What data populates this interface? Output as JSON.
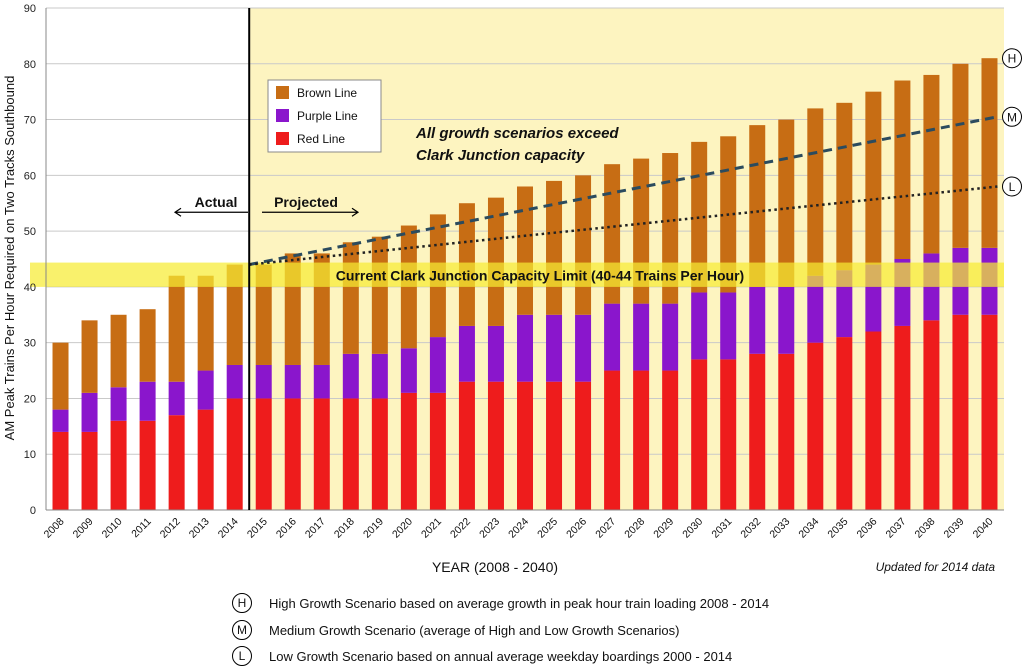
{
  "chart_data": {
    "type": "bar",
    "stacked": true,
    "title": "",
    "ylabel": "AM Peak Trains Per Hour Required on Two Tracks Southbound",
    "xlabel": "YEAR (2008 - 2040)",
    "ylim": [
      0,
      90
    ],
    "yticks": [
      0,
      10,
      20,
      30,
      40,
      50,
      60,
      70,
      80,
      90
    ],
    "categories": [
      "2008",
      "2009",
      "2010",
      "2011",
      "2012",
      "2013",
      "2014",
      "2015",
      "2016",
      "2017",
      "2018",
      "2019",
      "2020",
      "2021",
      "2022",
      "2023",
      "2024",
      "2025",
      "2026",
      "2027",
      "2028",
      "2029",
      "2030",
      "2031",
      "2032",
      "2033",
      "2034",
      "2035",
      "2036",
      "2037",
      "2038",
      "2039",
      "2040"
    ],
    "series": [
      {
        "name": "Red Line",
        "color": "#ee1c1c",
        "values": [
          14,
          14,
          16,
          16,
          17,
          18,
          20,
          20,
          20,
          20,
          20,
          20,
          21,
          21,
          23,
          23,
          23,
          23,
          23,
          25,
          25,
          25,
          27,
          27,
          28,
          28,
          30,
          31,
          32,
          33,
          34,
          35,
          35
        ]
      },
      {
        "name": "Purple Line",
        "color": "#8a16cc",
        "values": [
          4,
          7,
          6,
          7,
          6,
          7,
          6,
          6,
          6,
          6,
          8,
          8,
          8,
          10,
          10,
          10,
          12,
          12,
          12,
          12,
          12,
          12,
          12,
          12,
          12,
          12,
          12,
          12,
          12,
          12,
          12,
          12,
          12
        ]
      },
      {
        "name": "Brown Line",
        "color": "#c76d14",
        "values": [
          12,
          13,
          13,
          13,
          19,
          17,
          18,
          18,
          20,
          20,
          20,
          21,
          22,
          22,
          22,
          23,
          23,
          24,
          25,
          25,
          26,
          27,
          27,
          28,
          29,
          30,
          30,
          30,
          31,
          32,
          32,
          33,
          34
        ]
      }
    ],
    "legend": [
      "Brown Line",
      "Purple Line",
      "Red Line"
    ],
    "legend_position": "top-left",
    "actual_label": "Actual",
    "projected_label": "Projected",
    "split_after": "2014",
    "growth_note_line1": "All growth scenarios exceed",
    "growth_note_line2": "Clark Junction capacity",
    "capacity_label": "Current Clark Junction Capacity Limit (40-44 Trains Per Hour)",
    "capacity_range": [
      40,
      44
    ],
    "updated_note": "Updated for 2014 data",
    "scenario_lines": [
      {
        "marker": "H",
        "from_year": "2015",
        "from_value": 44,
        "to_year": "2040",
        "to_value": 81
      },
      {
        "marker": "M",
        "from_year": "2015",
        "from_value": 44,
        "to_year": "2040",
        "to_value": 70.5
      },
      {
        "marker": "L",
        "from_year": "2015",
        "from_value": 44,
        "to_year": "2040",
        "to_value": 58
      }
    ],
    "colors": {
      "projected_bg": "#fdf4c0",
      "capacity_band": "#f7ec33",
      "medium_line": "#2b4b5e",
      "low_line": "#222222"
    }
  },
  "scenarios": [
    {
      "marker": "H",
      "text": "High Growth Scenario based on average growth in peak hour train loading 2008 - 2014"
    },
    {
      "marker": "M",
      "text": "Medium Growth Scenario (average of High and Low Growth Scenarios)"
    },
    {
      "marker": "L",
      "text": "Low Growth Scenario based on annual average weekday boardings 2000 - 2014"
    }
  ]
}
